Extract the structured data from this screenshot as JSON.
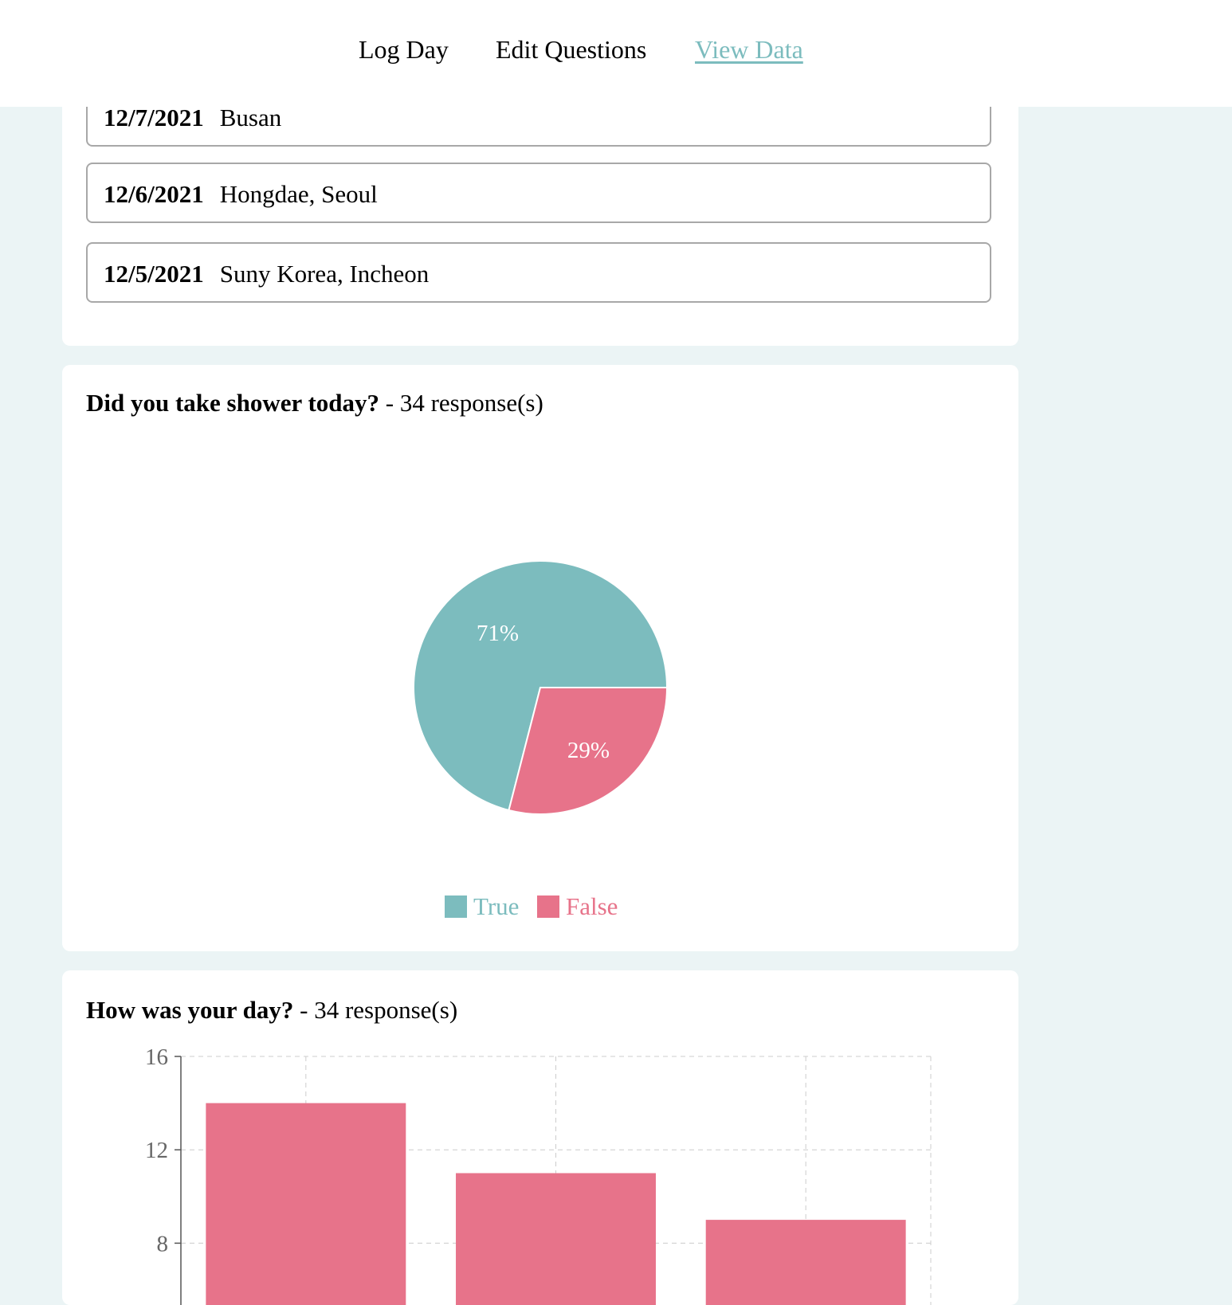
{
  "nav": {
    "items": [
      {
        "label": "Log Day",
        "active": false
      },
      {
        "label": "Edit Questions",
        "active": false
      },
      {
        "label": "View Data",
        "active": true
      }
    ]
  },
  "locations": {
    "entries": [
      {
        "date": "12/7/2021",
        "place": "Busan"
      },
      {
        "date": "12/6/2021",
        "place": "Hongdae, Seoul"
      },
      {
        "date": "12/5/2021",
        "place": "Suny Korea, Incheon"
      }
    ]
  },
  "questions": [
    {
      "question": "Did you take shower today?",
      "responses": "- 34 response(s)"
    },
    {
      "question": "How was your day?",
      "responses": "- 34 response(s)"
    }
  ],
  "colors": {
    "teal": "#7cbcbe",
    "pink": "#e7738a",
    "background": "#ebf4f5"
  },
  "chart_data": [
    {
      "type": "pie",
      "labels": [
        "True",
        "False"
      ],
      "values": [
        71,
        29
      ],
      "value_labels": [
        "71%",
        "29%"
      ],
      "colors": [
        "#7cbcbe",
        "#e7738a"
      ],
      "legend": "bottom"
    },
    {
      "type": "bar",
      "values": [
        14,
        11,
        9
      ],
      "y_ticks": [
        "8",
        "12",
        "16"
      ],
      "ylim": [
        0,
        16
      ],
      "grid": true,
      "color": "#e7738a"
    }
  ]
}
